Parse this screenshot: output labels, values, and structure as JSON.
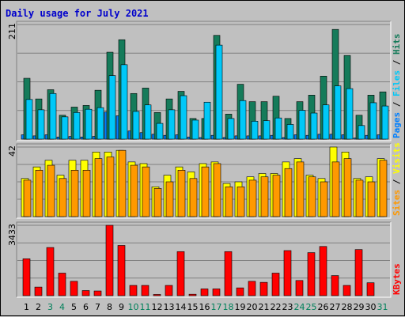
{
  "chart_data": [
    {
      "type": "bar",
      "title": "Daily usage for July 2021",
      "categories": [
        "1",
        "2",
        "3",
        "4",
        "5",
        "6",
        "7",
        "8",
        "9",
        "10",
        "11",
        "12",
        "13",
        "14",
        "15",
        "16",
        "17",
        "18",
        "19",
        "20",
        "21",
        "22",
        "23",
        "24",
        "25",
        "26",
        "27",
        "28",
        "29",
        "30",
        "31"
      ],
      "weekend_days": [
        "3",
        "4",
        "10",
        "11",
        "17",
        "18",
        "24",
        "25",
        "31"
      ],
      "ytick": "211",
      "ylim": [
        0,
        211
      ],
      "series": [
        {
          "name": "Pages",
          "color": "#0080ff",
          "values": [
            8,
            6,
            8,
            4,
            5,
            4,
            5,
            50,
            43,
            15,
            12,
            9,
            7,
            8,
            4,
            3,
            7,
            3,
            6,
            6,
            6,
            7,
            3,
            8,
            7,
            9,
            9,
            8,
            2,
            7,
            8
          ]
        },
        {
          "name": "Hits",
          "color": "#157b5a",
          "values": [
            112,
            74,
            91,
            44,
            59,
            62,
            90,
            160,
            183,
            84,
            94,
            49,
            74,
            88,
            38,
            38,
            191,
            46,
            101,
            69,
            69,
            79,
            38,
            69,
            81,
            116,
            202,
            154,
            44,
            81,
            87
          ]
        },
        {
          "name": "Files",
          "color": "#00c8f8",
          "values": [
            73,
            54,
            84,
            41,
            49,
            55,
            58,
            117,
            137,
            51,
            63,
            29,
            54,
            80,
            35,
            68,
            173,
            38,
            71,
            33,
            34,
            39,
            27,
            53,
            48,
            63,
            98,
            93,
            25,
            67,
            61
          ]
        }
      ],
      "right_label": [
        {
          "text": "Pages",
          "color": "#0080ff"
        },
        {
          "text": " / ",
          "color": "#000000"
        },
        {
          "text": "Files",
          "color": "#00c8f8"
        },
        {
          "text": " / ",
          "color": "#000000"
        },
        {
          "text": "Hits",
          "color": "#157b5a"
        }
      ]
    },
    {
      "type": "bar",
      "ytick": "42",
      "ylim": [
        0,
        42
      ],
      "series": [
        {
          "name": "Visits",
          "color": "#ffff00",
          "values": [
            23,
            30,
            34,
            25,
            34,
            34,
            39,
            39,
            40,
            33,
            32,
            18,
            25,
            30,
            27,
            32,
            33,
            20,
            21,
            24,
            26,
            26,
            33,
            35,
            25,
            23,
            42,
            39,
            23,
            24,
            35
          ]
        },
        {
          "name": "Sites",
          "color": "#ff9900",
          "values": [
            22,
            28,
            31,
            23,
            28,
            28,
            35,
            36,
            40,
            31,
            30,
            17,
            21,
            28,
            23,
            30,
            32,
            18,
            18,
            22,
            24,
            25,
            29,
            33,
            24,
            21,
            33,
            35,
            22,
            21,
            34
          ]
        }
      ],
      "right_label": [
        {
          "text": "Sites",
          "color": "#ff9900"
        },
        {
          "text": " / ",
          "color": "#000000"
        },
        {
          "text": "Visits",
          "color": "#ffff00"
        }
      ]
    },
    {
      "type": "bar",
      "ytick": "3433",
      "ylim": [
        0,
        3433
      ],
      "series": [
        {
          "name": "KBytes",
          "color": "#ff0000",
          "values": [
            1800,
            420,
            2350,
            1100,
            700,
            250,
            230,
            3433,
            2450,
            500,
            500,
            60,
            500,
            2150,
            70,
            330,
            330,
            2150,
            380,
            700,
            650,
            1100,
            2200,
            740,
            2100,
            2400,
            980,
            500,
            2250,
            630,
            0
          ]
        }
      ],
      "right_label": [
        {
          "text": "KBytes",
          "color": "#ff0000"
        }
      ]
    }
  ]
}
